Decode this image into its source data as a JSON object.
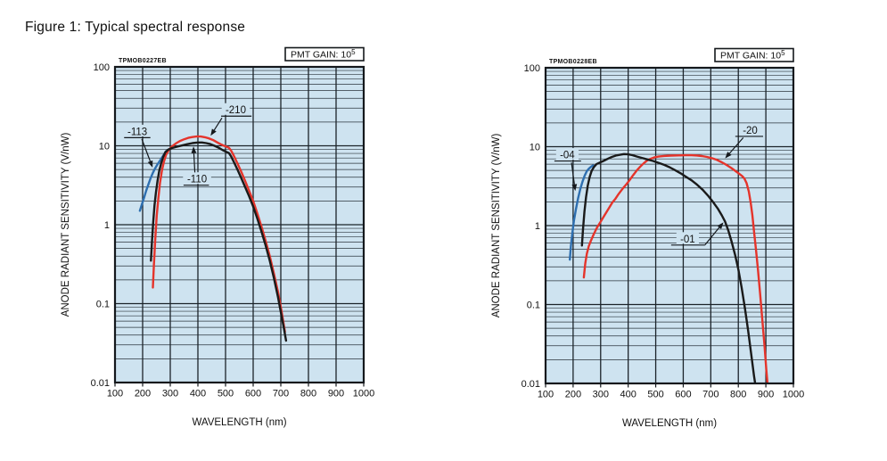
{
  "figure": {
    "title": "Figure 1: Typical spectral response"
  },
  "colors": {
    "plot_bg": "#cee3f0",
    "grid_minor": "#2b343c",
    "grid_major": "#1c242a",
    "frame": "#14181c",
    "curve_blue": "#2e6fb0",
    "curve_black": "#1a1a1a",
    "curve_red": "#e5342b",
    "badge_bg": "#ffffff"
  },
  "chart_data": [
    {
      "type": "line",
      "plot_id": "TPMOB0227EB",
      "badge": {
        "text": "PMT GAIN: 10",
        "sup": "5"
      },
      "xlabel": "WAVELENGTH (nm)",
      "ylabel": "ANODE RADIANT SENSITIVITY (V/nW)",
      "x_axis": {
        "scale": "linear",
        "min": 100,
        "max": 1000,
        "ticks": [
          100,
          200,
          300,
          400,
          500,
          600,
          700,
          800,
          900,
          1000
        ]
      },
      "y_axis": {
        "scale": "log",
        "min": 0.01,
        "max": 100,
        "tick_values": [
          100,
          10,
          1,
          0.1,
          0.01
        ],
        "tick_labels": [
          "100",
          "10",
          "1",
          "0.1",
          "0.01"
        ]
      },
      "series": [
        {
          "name": "-113",
          "color_key": "curve_blue",
          "points": [
            [
              190,
              1.5
            ],
            [
              197,
              1.8
            ],
            [
              205,
              2.2
            ],
            [
              213,
              2.7
            ],
            [
              221,
              3.25
            ],
            [
              229,
              3.9
            ],
            [
              237,
              4.55
            ],
            [
              245,
              5.15
            ],
            [
              253,
              5.75
            ],
            [
              261,
              6.35
            ],
            [
              269,
              7.0
            ],
            [
              277,
              7.75
            ],
            [
              284,
              8.5
            ]
          ]
        },
        {
          "name": "-210",
          "color_key": "curve_red",
          "points": [
            [
              237,
              0.16
            ],
            [
              241,
              0.32
            ],
            [
              246,
              0.7
            ],
            [
              251,
              1.3
            ],
            [
              257,
              2.2
            ],
            [
              263,
              3.4
            ],
            [
              270,
              4.9
            ],
            [
              277,
              6.3
            ],
            [
              285,
              7.7
            ],
            [
              295,
              8.9
            ],
            [
              307,
              9.9
            ],
            [
              320,
              10.7
            ],
            [
              335,
              11.5
            ],
            [
              350,
              12.1
            ],
            [
              365,
              12.6
            ],
            [
              380,
              12.9
            ],
            [
              395,
              13.1
            ],
            [
              410,
              13.1
            ],
            [
              425,
              12.85
            ],
            [
              440,
              12.4
            ],
            [
              455,
              11.8
            ],
            [
              470,
              11.05
            ],
            [
              483,
              10.45
            ],
            [
              495,
              10.0
            ],
            [
              505,
              9.7
            ],
            [
              513,
              9.4
            ],
            [
              521,
              8.6
            ],
            [
              531,
              7.35
            ],
            [
              543,
              6.0
            ],
            [
              556,
              4.75
            ],
            [
              570,
              3.65
            ],
            [
              585,
              2.7
            ],
            [
              600,
              2.0
            ],
            [
              615,
              1.4
            ],
            [
              630,
              0.95
            ],
            [
              645,
              0.63
            ],
            [
              660,
              0.4
            ],
            [
              675,
              0.24
            ],
            [
              690,
              0.14
            ],
            [
              702,
              0.083
            ],
            [
              710,
              0.056
            ],
            [
              715,
              0.044
            ]
          ]
        },
        {
          "name": "-110",
          "color_key": "curve_black",
          "points": [
            [
              230,
              0.35
            ],
            [
              234,
              0.62
            ],
            [
              238,
              1.05
            ],
            [
              243,
              1.75
            ],
            [
              248,
              2.55
            ],
            [
              254,
              3.6
            ],
            [
              260,
              4.8
            ],
            [
              267,
              6.0
            ],
            [
              274,
              7.15
            ],
            [
              282,
              8.25
            ],
            [
              292,
              8.95
            ],
            [
              305,
              9.35
            ],
            [
              320,
              9.65
            ],
            [
              340,
              10.05
            ],
            [
              360,
              10.45
            ],
            [
              380,
              10.8
            ],
            [
              400,
              11.0
            ],
            [
              415,
              11.0
            ],
            [
              430,
              10.8
            ],
            [
              445,
              10.5
            ],
            [
              460,
              10.0
            ],
            [
              475,
              9.45
            ],
            [
              490,
              8.8
            ],
            [
              502,
              8.4
            ],
            [
              512,
              8.1
            ],
            [
              520,
              7.35
            ],
            [
              530,
              6.25
            ],
            [
              542,
              5.1
            ],
            [
              555,
              4.05
            ],
            [
              570,
              3.05
            ],
            [
              585,
              2.3
            ],
            [
              600,
              1.7
            ],
            [
              615,
              1.2
            ],
            [
              630,
              0.82
            ],
            [
              645,
              0.55
            ],
            [
              660,
              0.35
            ],
            [
              675,
              0.21
            ],
            [
              690,
              0.12
            ],
            [
              702,
              0.072
            ],
            [
              712,
              0.047
            ],
            [
              719,
              0.034
            ]
          ]
        }
      ],
      "annotations": [
        {
          "label": "-113",
          "x": 181,
          "y": 15.2,
          "ul": [
            133,
            228
          ],
          "leader": [
            [
              197,
              12.2
            ],
            [
              236,
              5.3
            ]
          ]
        },
        {
          "label": "-210",
          "x": 537,
          "y": 28.5,
          "ul": [
            484,
            594
          ],
          "leader": [
            [
              487,
              22.5
            ],
            [
              446,
              13.4
            ]
          ]
        },
        {
          "label": "-110",
          "x": 397,
          "y": 3.8,
          "ul": [
            348,
            440
          ],
          "leader": [
            [
              389,
              4.6
            ],
            [
              384,
              9.8
            ]
          ]
        }
      ]
    },
    {
      "type": "line",
      "plot_id": "TPMOB0228EB",
      "badge": {
        "text": "PMT GAIN: 10",
        "sup": "5"
      },
      "xlabel": "WAVELENGTH (nm)",
      "ylabel": "ANODE RADIANT SENSITIVITY (V/nW)",
      "x_axis": {
        "scale": "linear",
        "min": 100,
        "max": 1000,
        "ticks": [
          100,
          200,
          300,
          400,
          500,
          600,
          700,
          800,
          900,
          1000
        ]
      },
      "y_axis": {
        "scale": "log",
        "min": 0.01,
        "max": 100,
        "tick_values": [
          100,
          10,
          1,
          0.1,
          0.01
        ],
        "tick_labels": [
          "100",
          "10",
          "1",
          "0.1",
          "0.01"
        ]
      },
      "series": [
        {
          "name": "-04",
          "color_key": "curve_blue",
          "points": [
            [
              188,
              0.37
            ],
            [
              192,
              0.55
            ],
            [
              197,
              0.8
            ],
            [
              203,
              1.15
            ],
            [
              210,
              1.6
            ],
            [
              218,
              2.2
            ],
            [
              226,
              2.9
            ],
            [
              234,
              3.6
            ],
            [
              242,
              4.3
            ],
            [
              250,
              4.9
            ],
            [
              258,
              5.3
            ],
            [
              266,
              5.6
            ],
            [
              273,
              5.78
            ]
          ]
        },
        {
          "name": "-20",
          "color_key": "curve_red",
          "points": [
            [
              239,
              0.22
            ],
            [
              244,
              0.33
            ],
            [
              250,
              0.44
            ],
            [
              257,
              0.55
            ],
            [
              265,
              0.65
            ],
            [
              275,
              0.78
            ],
            [
              287,
              0.95
            ],
            [
              300,
              1.12
            ],
            [
              314,
              1.35
            ],
            [
              328,
              1.62
            ],
            [
              342,
              1.95
            ],
            [
              354,
              2.2
            ],
            [
              363,
              2.45
            ],
            [
              372,
              2.7
            ],
            [
              382,
              3.0
            ],
            [
              394,
              3.35
            ],
            [
              406,
              3.8
            ],
            [
              419,
              4.4
            ],
            [
              432,
              5.05
            ],
            [
              444,
              5.6
            ],
            [
              456,
              6.15
            ],
            [
              468,
              6.65
            ],
            [
              480,
              7.0
            ],
            [
              494,
              7.3
            ],
            [
              510,
              7.5
            ],
            [
              530,
              7.62
            ],
            [
              555,
              7.7
            ],
            [
              580,
              7.75
            ],
            [
              605,
              7.78
            ],
            [
              630,
              7.78
            ],
            [
              650,
              7.72
            ],
            [
              668,
              7.6
            ],
            [
              686,
              7.42
            ],
            [
              704,
              7.15
            ],
            [
              722,
              6.8
            ],
            [
              740,
              6.35
            ],
            [
              758,
              5.85
            ],
            [
              775,
              5.35
            ],
            [
              790,
              4.9
            ],
            [
              803,
              4.55
            ],
            [
              814,
              4.25
            ],
            [
              822,
              3.95
            ],
            [
              830,
              3.45
            ],
            [
              838,
              2.7
            ],
            [
              845,
              1.95
            ],
            [
              851,
              1.35
            ],
            [
              857,
              0.85
            ],
            [
              864,
              0.5
            ],
            [
              871,
              0.28
            ],
            [
              879,
              0.14
            ],
            [
              887,
              0.065
            ],
            [
              895,
              0.03
            ],
            [
              902,
              0.0145
            ],
            [
              907,
              0.009
            ]
          ]
        },
        {
          "name": "-01",
          "color_key": "curve_black",
          "points": [
            [
              232,
              0.56
            ],
            [
              236,
              0.9
            ],
            [
              241,
              1.5
            ],
            [
              247,
              2.3
            ],
            [
              253,
              3.2
            ],
            [
              260,
              4.1
            ],
            [
              267,
              4.9
            ],
            [
              275,
              5.5
            ],
            [
              285,
              6.0
            ],
            [
              297,
              6.3
            ],
            [
              310,
              6.6
            ],
            [
              325,
              7.0
            ],
            [
              340,
              7.4
            ],
            [
              355,
              7.7
            ],
            [
              370,
              7.9
            ],
            [
              385,
              8.05
            ],
            [
              400,
              8.0
            ],
            [
              415,
              7.8
            ],
            [
              432,
              7.5
            ],
            [
              450,
              7.2
            ],
            [
              470,
              6.9
            ],
            [
              490,
              6.6
            ],
            [
              510,
              6.25
            ],
            [
              530,
              5.9
            ],
            [
              550,
              5.5
            ],
            [
              570,
              5.05
            ],
            [
              590,
              4.6
            ],
            [
              610,
              4.15
            ],
            [
              630,
              3.75
            ],
            [
              650,
              3.3
            ],
            [
              670,
              2.85
            ],
            [
              690,
              2.4
            ],
            [
              710,
              1.95
            ],
            [
              725,
              1.65
            ],
            [
              740,
              1.35
            ],
            [
              752,
              1.12
            ],
            [
              764,
              0.86
            ],
            [
              776,
              0.62
            ],
            [
              788,
              0.43
            ],
            [
              800,
              0.28
            ],
            [
              812,
              0.165
            ],
            [
              824,
              0.09
            ],
            [
              836,
              0.046
            ],
            [
              848,
              0.022
            ],
            [
              857,
              0.0125
            ],
            [
              863,
              0.009
            ]
          ]
        }
      ],
      "annotations": [
        {
          "label": "-04",
          "x": 179,
          "y": 7.9,
          "ul": [
            132,
            229
          ],
          "leader": [
            [
              194,
              6.3
            ],
            [
              208,
              2.75
            ]
          ]
        },
        {
          "label": "-20",
          "x": 843,
          "y": 16.2,
          "ul": [
            789,
            890
          ],
          "leader": [
            [
              818,
              13.0
            ],
            [
              752,
              7.1
            ]
          ]
        },
        {
          "label": "-01",
          "x": 616,
          "y": 0.68,
          "ul": [
            556,
            679
          ],
          "leader": [
            [
              679,
              0.57
            ],
            [
              746,
              1.1
            ]
          ]
        }
      ]
    }
  ]
}
